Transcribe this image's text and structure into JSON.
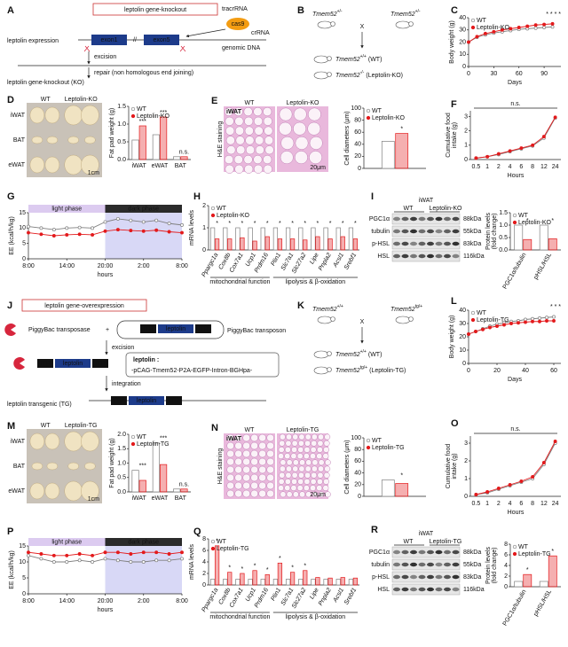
{
  "diagrams": {
    "A": {
      "label": "A",
      "title": "leptolin gene-knockout",
      "expression": "leptolin expression",
      "exon1": "exon1",
      "break": "//",
      "exon5": "exon5",
      "cas9": "cas9",
      "tracrRNA": "tracrRNA",
      "crRNA": "crRNA",
      "genomic_dna": "genomic DNA",
      "excision": "excision",
      "repair": "repair (non homologous end joining)",
      "result": "leptolin gene-knockout (KO)"
    },
    "B": {
      "label": "B",
      "gene": "Tmem52",
      "parent_genotypes": [
        "+/-",
        "+/-"
      ],
      "cross": "X",
      "offspring": [
        {
          "genotype": "+/+",
          "name": "(WT)"
        },
        {
          "genotype": "-/-",
          "name": "(Leptolin-KO)"
        }
      ]
    },
    "D": {
      "label": "D",
      "groups": [
        "WT",
        "Leptolin-KO"
      ],
      "tissues": [
        "iWAT",
        "BAT",
        "eWAT"
      ],
      "scale": "1cm"
    },
    "E": {
      "label": "E",
      "groups": [
        "WT",
        "Leptolin-KO"
      ],
      "stain": "H&E staining",
      "tissue": "iWAT",
      "scale": "20μm"
    },
    "I": {
      "label": "I",
      "tissue": "iWAT",
      "groups": [
        "WT",
        "Leptolin-KO"
      ],
      "proteins": [
        "PGC1α",
        "tubulin",
        "p-HSL",
        "HSL"
      ],
      "sizes": [
        "88kDa",
        "55kDa",
        "83kDa",
        "116kDa"
      ]
    },
    "J": {
      "label": "J",
      "title": "leptolin gene-overexpression",
      "transposase": "PiggyBac transposase",
      "plus": "+",
      "transposon": "PiggyBac transposon",
      "itr": "ITR",
      "leptolin": "leptolin",
      "excision": "excision",
      "construct_label": "leptolin :",
      "construct": "-pCAG-Tmem52-P2A-EGFP-Intron-BGHpa-",
      "integration": "integration",
      "transgenic": "leptolin transgenic (TG)"
    },
    "K": {
      "label": "K",
      "gene": "Tmem52",
      "parent_genotypes": [
        "+/+",
        "tg/+"
      ],
      "cross": "X",
      "offspring": [
        {
          "genotype": "+/+",
          "name": "(WT)"
        },
        {
          "genotype": "tg/+",
          "name": "(Leptolin-TG)"
        }
      ]
    },
    "M": {
      "label": "M",
      "groups": [
        "WT",
        "Leptolin-TG"
      ],
      "tissues": [
        "iWAT",
        "BAT",
        "eWAT"
      ],
      "scale": "1cm"
    },
    "N": {
      "label": "N",
      "groups": [
        "WT",
        "Leptolin-TG"
      ],
      "stain": "H&E staining",
      "tissue": "iWAT",
      "scale": "20μm"
    },
    "R": {
      "label": "R",
      "tissue": "iWAT",
      "groups": [
        "WT",
        "Leptolin-TG"
      ],
      "proteins": [
        "PGC1α",
        "tubulin",
        "p-HSL",
        "HSL"
      ],
      "sizes": [
        "88kDa",
        "55kDa",
        "83kDa",
        "116kDa"
      ]
    }
  },
  "chart_data": [
    {
      "type": "line",
      "panel": "C",
      "ylabel": "Body weight (g)",
      "xlabel": "Days",
      "x": [
        0,
        10,
        20,
        30,
        40,
        50,
        60,
        70,
        80,
        90,
        100
      ],
      "xlim": [
        0,
        110
      ],
      "xticks": [
        0,
        30,
        60,
        90
      ],
      "ylim": [
        0,
        40
      ],
      "yticks": [
        0,
        10,
        20,
        30,
        40
      ],
      "series": [
        {
          "name": "WT",
          "color": "#7f7f7f",
          "values": [
            20,
            24,
            26,
            27.5,
            28.5,
            29.5,
            30.5,
            31,
            31.5,
            32,
            32.5
          ]
        },
        {
          "name": "Leptolin-KO",
          "color": "#e31a1c",
          "values": [
            20,
            24.5,
            27,
            28.5,
            30,
            31,
            32,
            33,
            34,
            34.5,
            35
          ]
        }
      ],
      "annotations": [
        "* * * *"
      ]
    },
    {
      "type": "bar",
      "ylabel": "Fat pad weight (g)",
      "categories": [
        "iWAT",
        "eWAT",
        "BAT"
      ],
      "ylim": [
        0,
        1.5
      ],
      "yticks": [
        {
          "value": 0,
          "label": "0.0"
        },
        0.5,
        {
          "value": 1,
          "label": "1.0"
        },
        1.5
      ],
      "series": [
        {
          "name": "WT",
          "color": "#7f7f7f",
          "values": [
            0.55,
            0.7,
            0.08
          ]
        },
        {
          "name": "Leptolin-KO",
          "color": "#e31a1c",
          "values": [
            0.95,
            1.2,
            0.08
          ]
        }
      ],
      "annotations": [
        "***",
        "***",
        "n.s."
      ]
    },
    {
      "type": "bar",
      "ylabel": "Cell diameters (μm)",
      "categories": [
        null
      ],
      "ylim": [
        0,
        100
      ],
      "yticks": [
        0,
        20,
        40,
        60,
        80,
        100
      ],
      "series": [
        {
          "name": "WT",
          "color": "#7f7f7f",
          "values": [
            45
          ]
        },
        {
          "name": "Leptolin-KO",
          "color": "#e31a1c",
          "values": [
            58
          ]
        }
      ],
      "annotations": [
        "*"
      ]
    },
    {
      "type": "line",
      "panel": "F",
      "ylabel": [
        "Cumulative food",
        "intake (g)"
      ],
      "xlabel": "Hours",
      "categories": [
        "0.5",
        "1",
        "2",
        "4",
        "6",
        "8",
        "12",
        "24"
      ],
      "ylim": [
        0,
        3.4
      ],
      "yticks": [
        0,
        1,
        2,
        3
      ],
      "series": [
        {
          "color": "#7f7f7f",
          "values": [
            0.1,
            0.2,
            0.35,
            0.55,
            0.75,
            0.95,
            1.5,
            2.9
          ]
        },
        {
          "color": "#e31a1c",
          "values": [
            0.1,
            0.2,
            0.4,
            0.6,
            0.8,
            1.0,
            1.6,
            2.95
          ]
        }
      ],
      "annotations": [
        "n.s."
      ]
    },
    {
      "type": "line",
      "panel": "G",
      "ylabel": "EE (kcal/h/kg)",
      "xlabel": "hours",
      "x": [
        0,
        2,
        4,
        6,
        8,
        10,
        12,
        14,
        16,
        18,
        20,
        22,
        24
      ],
      "xlim": [
        0,
        24
      ],
      "xticks": [
        {
          "value": 0,
          "label": "8:00"
        },
        {
          "value": 6,
          "label": "14:00"
        },
        {
          "value": 12,
          "label": "20:00"
        },
        {
          "value": 18,
          "label": "2:00"
        },
        {
          "value": 24,
          "label": "8:00"
        }
      ],
      "ylim": [
        0,
        15
      ],
      "yticks": [
        0,
        5,
        10,
        15
      ],
      "phases": [
        "light phase",
        "dark phase"
      ],
      "series": [
        {
          "color": "#7f7f7f",
          "values": [
            10.5,
            10,
            9.5,
            10,
            10.2,
            10,
            12,
            13,
            12.5,
            12,
            12.5,
            11.5,
            11
          ]
        },
        {
          "color": "#e31a1c",
          "values": [
            8.5,
            8,
            7.5,
            7.8,
            8,
            7.8,
            9,
            9.5,
            9.2,
            9,
            9.3,
            8.8,
            8.5
          ]
        }
      ]
    },
    {
      "type": "bar",
      "panel": "H",
      "ylabel": "mRNA levels",
      "categories": [
        "Ppargc1a",
        "Cox8b",
        "Cox7a1",
        "Ucp1",
        "Prdm16",
        "Plin1",
        "Slc7a1",
        "Slc27a2",
        "Lipe",
        "Pnpla2",
        "Acsl1",
        "Srebf1"
      ],
      "groups": [
        "mitochondrial function",
        "lipolysis & β-oxidation"
      ],
      "ylim": [
        0,
        2
      ],
      "yticks": [
        0,
        1,
        2
      ],
      "series": [
        {
          "name": "WT",
          "color": "#7f7f7f",
          "values": [
            1,
            1,
            1,
            1,
            1,
            1,
            1,
            1,
            1,
            1,
            1,
            1
          ]
        },
        {
          "name": "Leptolin-KO",
          "color": "#e31a1c",
          "values": [
            0.5,
            0.5,
            0.55,
            0.4,
            0.6,
            0.5,
            0.5,
            0.45,
            0.6,
            0.5,
            0.6,
            0.5
          ]
        }
      ],
      "annotations": [
        "*",
        "*",
        "*",
        "*",
        "*",
        "*",
        "*",
        "*",
        "*",
        "*",
        "*",
        "*"
      ]
    },
    {
      "type": "bar",
      "ylabel": [
        "Protein levels",
        "(fold change)"
      ],
      "categories": [
        "PGC1α/tubulin",
        "pHSL/HSL"
      ],
      "ylim": [
        0,
        1.5
      ],
      "yticks": [
        {
          "value": 0,
          "label": "0.0"
        },
        0.5,
        {
          "value": 1,
          "label": "1.0"
        },
        1.5
      ],
      "series": [
        {
          "name": "WT",
          "color": "#7f7f7f",
          "values": [
            1,
            1
          ]
        },
        {
          "name": "Leptolin-KO",
          "color": "#e31a1c",
          "values": [
            0.42,
            0.45
          ]
        }
      ],
      "annotations": [
        "*",
        "*"
      ]
    },
    {
      "type": "line",
      "panel": "L",
      "ylabel": "Body weight (g)",
      "xlabel": "Days",
      "x": [
        0,
        5,
        10,
        15,
        20,
        25,
        30,
        35,
        40,
        45,
        50,
        55,
        60
      ],
      "xlim": [
        0,
        65
      ],
      "xticks": [
        0,
        20,
        40,
        60
      ],
      "ylim": [
        0,
        40
      ],
      "yticks": [
        0,
        10,
        20,
        30,
        40
      ],
      "series": [
        {
          "name": "WT",
          "color": "#7f7f7f",
          "values": [
            22,
            24,
            26,
            28,
            29.5,
            30.5,
            31.5,
            32,
            33,
            33.5,
            34,
            34.5,
            35
          ]
        },
        {
          "name": "Leptolin-TG",
          "color": "#e31a1c",
          "values": [
            22,
            24,
            25.5,
            27,
            28,
            29,
            30,
            30.5,
            31,
            31.5,
            31.5,
            32,
            32
          ]
        }
      ],
      "annotations": [
        "* * *"
      ]
    },
    {
      "type": "bar",
      "ylabel": "Fat pad weight (g)",
      "categories": [
        "iWAT",
        "eWAT",
        "BAT"
      ],
      "ylim": [
        0,
        2
      ],
      "yticks": [
        {
          "value": 0,
          "label": "0.0"
        },
        0.5,
        {
          "value": 1,
          "label": "1.0"
        },
        1.5,
        {
          "value": 2,
          "label": "2.0"
        }
      ],
      "series": [
        {
          "name": "WT",
          "color": "#7f7f7f",
          "values": [
            0.75,
            1.7,
            0.1
          ]
        },
        {
          "name": "Leptolin-TG",
          "color": "#e31a1c",
          "values": [
            0.4,
            0.95,
            0.1
          ]
        }
      ],
      "annotations": [
        "***",
        "***",
        "n.s."
      ]
    },
    {
      "type": "bar",
      "ylabel": "Cell diameters (μm)",
      "categories": [
        null
      ],
      "ylim": [
        0,
        100
      ],
      "yticks": [
        0,
        20,
        40,
        60,
        80,
        100
      ],
      "series": [
        {
          "name": "WT",
          "color": "#7f7f7f",
          "values": [
            28
          ]
        },
        {
          "name": "Leptolin-TG",
          "color": "#e31a1c",
          "values": [
            22
          ]
        }
      ],
      "annotations": [
        "*"
      ]
    },
    {
      "type": "line",
      "panel": "O",
      "ylabel": [
        "Cumulative food",
        "intake (g)"
      ],
      "xlabel": "Hours",
      "categories": [
        "0.5",
        "1",
        "2",
        "4",
        "6",
        "8",
        "12",
        "24"
      ],
      "ylim": [
        0,
        3.4
      ],
      "yticks": [
        0,
        1,
        2,
        3
      ],
      "series": [
        {
          "color": "#7f7f7f",
          "values": [
            0.1,
            0.2,
            0.4,
            0.6,
            0.8,
            1.0,
            1.8,
            3.0
          ]
        },
        {
          "color": "#e31a1c",
          "values": [
            0.1,
            0.25,
            0.45,
            0.65,
            0.85,
            1.1,
            1.9,
            3.1
          ]
        }
      ],
      "annotations": [
        "n.s."
      ]
    },
    {
      "type": "line",
      "panel": "P",
      "ylabel": "EE (kcal/h/kg)",
      "xlabel": "hours",
      "x": [
        0,
        2,
        4,
        6,
        8,
        10,
        12,
        14,
        16,
        18,
        20,
        22,
        24
      ],
      "xlim": [
        0,
        24
      ],
      "xticks": [
        {
          "value": 0,
          "label": "8:00"
        },
        {
          "value": 6,
          "label": "14:00"
        },
        {
          "value": 12,
          "label": "20:00"
        },
        {
          "value": 18,
          "label": "2:00"
        },
        {
          "value": 24,
          "label": "8:00"
        }
      ],
      "ylim": [
        0,
        15
      ],
      "yticks": [
        0,
        5,
        10,
        15
      ],
      "phases": [
        "light phase",
        "dark phase"
      ],
      "series": [
        {
          "color": "#7f7f7f",
          "values": [
            12,
            11,
            10,
            10,
            10.5,
            10,
            11,
            10.5,
            10,
            10,
            10.5,
            10.5,
            11
          ]
        },
        {
          "color": "#e31a1c",
          "values": [
            13,
            12.5,
            12,
            12,
            12.5,
            12,
            13,
            13,
            12.5,
            13,
            13,
            12.5,
            13
          ]
        }
      ]
    },
    {
      "type": "bar",
      "panel": "Q",
      "ylabel": "mRNA levels",
      "categories": [
        "Ppargc1a",
        "Cox8b",
        "Cox7a1",
        "Ucp1",
        "Prdm16",
        "Plin1",
        "Slc7a1",
        "Slc27a2",
        "Lipe",
        "Pnpla2",
        "Acsl1",
        "Srebf1"
      ],
      "groups": [
        "mitochondrial function",
        "lipolysis & β-oxidation"
      ],
      "ylim": [
        0,
        8
      ],
      "yticks": [
        0,
        2,
        4,
        6,
        8
      ],
      "series": [
        {
          "name": "WT",
          "color": "#7f7f7f",
          "values": [
            1,
            1,
            1,
            1,
            1,
            1,
            1,
            1,
            1,
            1,
            1,
            1
          ]
        },
        {
          "name": "Leptolin-TG",
          "color": "#e31a1c",
          "values": [
            6.8,
            2.2,
            2.0,
            2.5,
            1.8,
            3.8,
            2.2,
            2.5,
            1.3,
            1.2,
            1.3,
            1.2
          ]
        }
      ],
      "annotations": [
        "*",
        "*",
        "*",
        "*",
        "*",
        "*",
        "*",
        "*",
        null,
        null,
        null,
        null
      ]
    },
    {
      "type": "bar",
      "ylabel": [
        "Protein levels",
        "(fold change)"
      ],
      "categories": [
        "PGC1α/tubulin",
        "pHSL/HSL"
      ],
      "ylim": [
        0,
        8
      ],
      "yticks": [
        0,
        2,
        4,
        6,
        8
      ],
      "series": [
        {
          "name": "WT",
          "color": "#7f7f7f",
          "values": [
            1,
            1
          ]
        },
        {
          "name": "Leptolin-TG",
          "color": "#e31a1c",
          "values": [
            2.3,
            5.8
          ]
        }
      ],
      "annotations": [
        "*",
        "*"
      ]
    }
  ]
}
